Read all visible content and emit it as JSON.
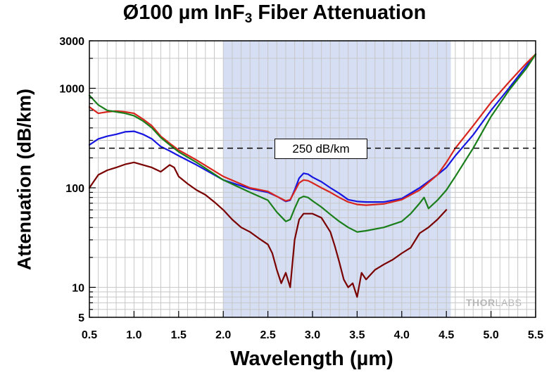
{
  "title_main": "Ø100 µm InF",
  "title_sub": "3",
  "title_rest": " Fiber Attenuation",
  "watermark": {
    "bold": "THOR",
    "thin": "LABS"
  },
  "chart_data": {
    "type": "line",
    "title": "Ø100 µm InF3 Fiber Attenuation",
    "xlabel": "Wavelength (µm)",
    "ylabel": "Attenuation (dB/km)",
    "xlim": [
      0.5,
      5.5
    ],
    "ylim": [
      5,
      3000
    ],
    "yscale": "log",
    "grid": true,
    "xticks": [
      0.5,
      1.0,
      1.5,
      2.0,
      2.5,
      3.0,
      3.5,
      4.0,
      4.5,
      5.0,
      5.5
    ],
    "xtick_labels": [
      "0.5",
      "1.0",
      "1.5",
      "2.0",
      "2.5",
      "3.0",
      "3.5",
      "4.0",
      "4.5",
      "5.0",
      "5.5"
    ],
    "yticks": [
      5,
      10,
      100,
      1000,
      3000
    ],
    "ytick_labels": [
      "5",
      "10",
      "100",
      "1000",
      "3000"
    ],
    "shaded_band": {
      "x": [
        2.0,
        4.55
      ],
      "color": "#d5def3"
    },
    "reference_line": {
      "y": 250,
      "label": "250 dB/km",
      "style": "dashed"
    },
    "series": [
      {
        "color": "#00008e",
        "nominal": "blue",
        "x": [
          0.5,
          0.6,
          0.7,
          0.8,
          0.9,
          1.0,
          1.1,
          1.2,
          1.3,
          1.4,
          1.5,
          1.7,
          2.0,
          2.3,
          2.5,
          2.6,
          2.7,
          2.75,
          2.8,
          2.85,
          2.9,
          2.95,
          3.0,
          3.1,
          3.2,
          3.3,
          3.4,
          3.5,
          3.6,
          3.8,
          4.0,
          4.2,
          4.4,
          4.5,
          4.6,
          4.8,
          5.0,
          5.2,
          5.4,
          5.5
        ],
        "y": [
          270,
          310,
          330,
          345,
          365,
          370,
          345,
          310,
          260,
          235,
          210,
          170,
          120,
          98,
          90,
          82,
          73,
          75,
          95,
          125,
          140,
          137,
          128,
          115,
          100,
          88,
          76,
          73,
          72,
          72,
          78,
          100,
          135,
          160,
          210,
          340,
          600,
          1000,
          1700,
          2200
        ],
        "color_hex": "#1616e0"
      },
      {
        "color": "#d8261f",
        "nominal": "red",
        "x": [
          0.5,
          0.6,
          0.7,
          0.8,
          0.9,
          1.0,
          1.1,
          1.2,
          1.3,
          1.4,
          1.5,
          1.7,
          2.0,
          2.3,
          2.5,
          2.6,
          2.7,
          2.75,
          2.8,
          2.85,
          2.9,
          2.95,
          3.0,
          3.1,
          3.2,
          3.3,
          3.4,
          3.5,
          3.6,
          3.8,
          4.0,
          4.2,
          4.4,
          4.5,
          4.6,
          4.8,
          5.0,
          5.2,
          5.4,
          5.5
        ],
        "y": [
          650,
          560,
          580,
          590,
          580,
          560,
          490,
          420,
          330,
          280,
          240,
          190,
          130,
          100,
          92,
          82,
          74,
          76,
          92,
          112,
          120,
          118,
          112,
          100,
          90,
          80,
          72,
          68,
          67,
          69,
          76,
          95,
          135,
          180,
          250,
          420,
          720,
          1150,
          1800,
          2200
        ]
      },
      {
        "color": "#1a7f1a",
        "nominal": "green",
        "x": [
          0.5,
          0.6,
          0.7,
          0.8,
          0.9,
          1.0,
          1.1,
          1.2,
          1.3,
          1.4,
          1.5,
          1.7,
          2.0,
          2.3,
          2.5,
          2.6,
          2.7,
          2.75,
          2.8,
          2.85,
          2.9,
          2.95,
          3.0,
          3.1,
          3.2,
          3.3,
          3.4,
          3.5,
          3.6,
          3.8,
          4.0,
          4.1,
          4.2,
          4.25,
          4.3,
          4.4,
          4.5,
          4.6,
          4.8,
          5.0,
          5.2,
          5.4,
          5.5
        ],
        "y": [
          850,
          680,
          600,
          580,
          560,
          530,
          470,
          400,
          320,
          270,
          230,
          180,
          120,
          90,
          75,
          57,
          46,
          48,
          62,
          78,
          82,
          80,
          74,
          64,
          54,
          46,
          40,
          36,
          37,
          40,
          46,
          55,
          70,
          80,
          62,
          75,
          95,
          130,
          250,
          520,
          950,
          1600,
          2200
        ]
      },
      {
        "color": "#7a0000",
        "nominal": "dark red",
        "x": [
          0.5,
          0.6,
          0.7,
          0.8,
          0.9,
          1.0,
          1.1,
          1.2,
          1.3,
          1.4,
          1.45,
          1.5,
          1.6,
          1.7,
          1.8,
          1.9,
          2.0,
          2.1,
          2.2,
          2.3,
          2.4,
          2.5,
          2.55,
          2.6,
          2.65,
          2.7,
          2.75,
          2.8,
          2.85,
          2.9,
          3.0,
          3.1,
          3.2,
          3.25,
          3.3,
          3.35,
          3.4,
          3.45,
          3.5,
          3.55,
          3.6,
          3.7,
          3.8,
          3.9,
          4.0,
          4.1,
          4.2,
          4.3,
          4.4,
          4.5
        ],
        "y": [
          100,
          135,
          150,
          160,
          172,
          180,
          170,
          160,
          145,
          170,
          160,
          130,
          110,
          95,
          85,
          72,
          60,
          48,
          40,
          36,
          31,
          27,
          22,
          15,
          11,
          14,
          10,
          30,
          48,
          55,
          55,
          50,
          36,
          26,
          18,
          12,
          10,
          11,
          8,
          14,
          12,
          15,
          17,
          19,
          22,
          25,
          35,
          40,
          48,
          60
        ]
      }
    ]
  }
}
